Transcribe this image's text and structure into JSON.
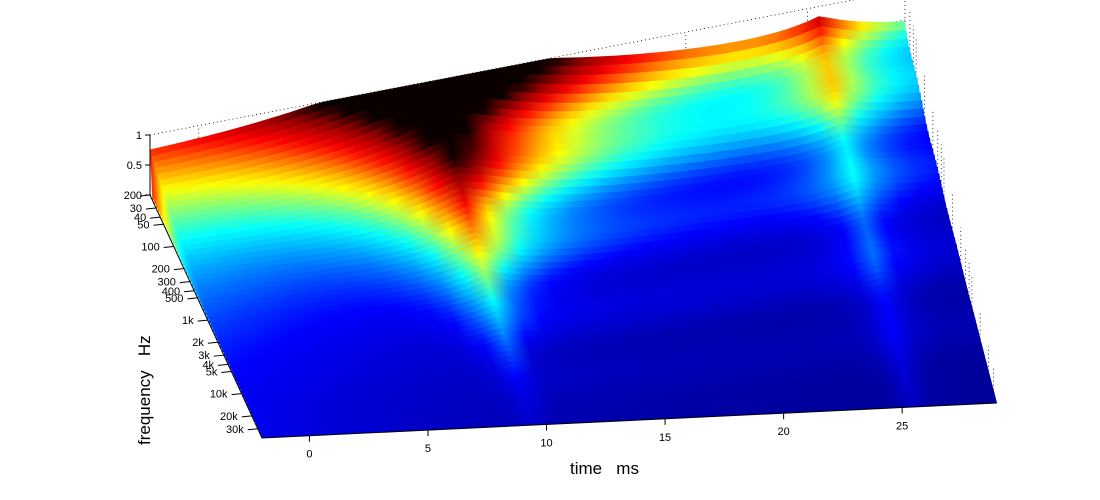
{
  "chart_data": {
    "type": "surface",
    "title": "",
    "xlabel": "time   ms",
    "ylabel": "frequency   Hz",
    "zlabel": "",
    "colormap": "jet",
    "colormap_stops": [
      "#00008f",
      "#0000ff",
      "#00ffff",
      "#ffff00",
      "#ff0000",
      "#800000",
      "#000000"
    ],
    "x_ticks": [
      "0",
      "5",
      "10",
      "15",
      "20",
      "25"
    ],
    "x_tick_values": [
      0,
      5,
      10,
      15,
      20,
      25
    ],
    "y_ticks": [
      "20",
      "30",
      "40",
      "50",
      "100",
      "200",
      "300",
      "400",
      "500",
      "1k",
      "2k",
      "3k",
      "4k",
      "5k",
      "10k",
      "20k",
      "30k"
    ],
    "y_tick_values": [
      20,
      30,
      40,
      50,
      100,
      200,
      300,
      400,
      500,
      1000,
      2000,
      3000,
      4000,
      5000,
      10000,
      20000,
      30000
    ],
    "z_ticks": [
      "0",
      "0.5",
      "1"
    ],
    "z_tick_values": [
      0,
      0.5,
      1
    ],
    "xlim": [
      -2,
      29
    ],
    "ylim": [
      20,
      40000
    ],
    "zlim": [
      0,
      1
    ],
    "y_scale": "log",
    "grid": true,
    "features": [
      {
        "kind": "onset",
        "time_ms": -2,
        "peak_amplitude_low_freq": 0.6
      },
      {
        "kind": "main_peak",
        "time_ms": 9.5,
        "peak_amplitude": 1.0
      },
      {
        "kind": "secondary_ridge",
        "time_ms": 25.5,
        "peak_amplitude": 0.55
      }
    ]
  }
}
